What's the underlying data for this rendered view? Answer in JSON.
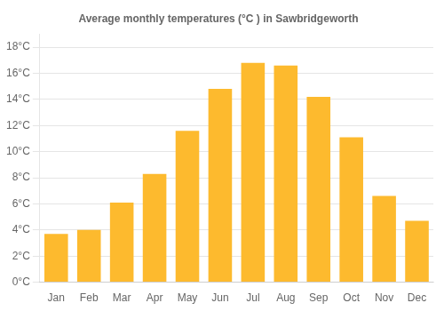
{
  "chart_data": {
    "type": "bar",
    "title": "Average monthly temperatures (°C ) in Sawbridgeworth",
    "categories": [
      "Jan",
      "Feb",
      "Mar",
      "Apr",
      "May",
      "Jun",
      "Jul",
      "Aug",
      "Sep",
      "Oct",
      "Nov",
      "Dec"
    ],
    "values": [
      3.7,
      4.0,
      6.1,
      8.3,
      11.6,
      14.8,
      16.8,
      16.6,
      14.2,
      11.1,
      6.6,
      4.7
    ],
    "color": "#FDBA2E",
    "ylim": [
      0,
      19
    ],
    "yticks": [
      {
        "value": 0,
        "label": "0°C"
      },
      {
        "value": 2,
        "label": "2°C"
      },
      {
        "value": 4,
        "label": "4°C"
      },
      {
        "value": 6,
        "label": "6°C"
      },
      {
        "value": 8,
        "label": "8°C"
      },
      {
        "value": 10,
        "label": "10°C"
      },
      {
        "value": 12,
        "label": "12°C"
      },
      {
        "value": 14,
        "label": "14°C"
      },
      {
        "value": 16,
        "label": "16°C"
      },
      {
        "value": 18,
        "label": "18°C"
      }
    ],
    "grid": true
  }
}
